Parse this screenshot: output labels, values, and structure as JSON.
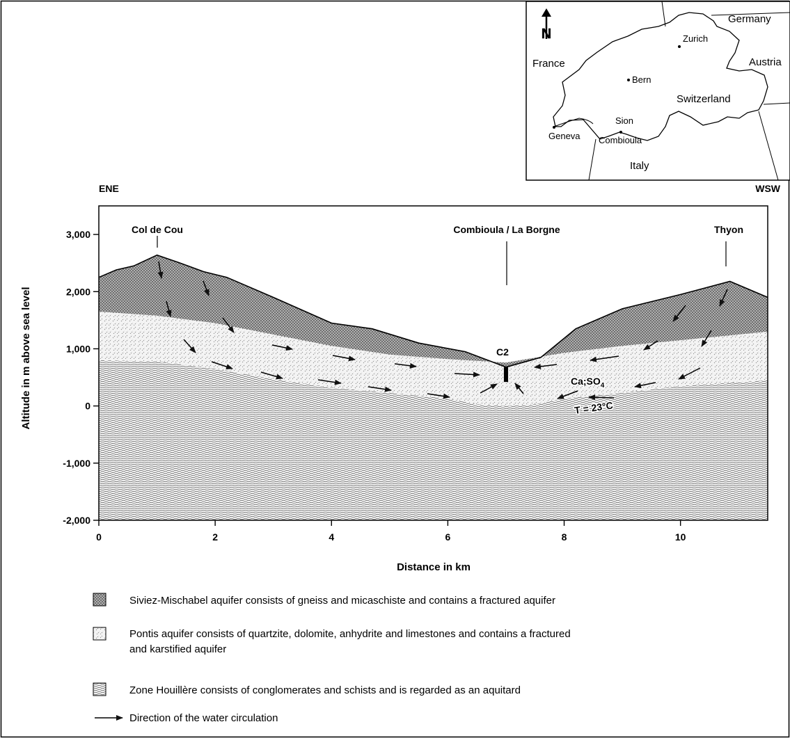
{
  "inset_map": {
    "north_label": "N",
    "countries": [
      "Germany",
      "Austria",
      "France",
      "Switzerland",
      "Italy"
    ],
    "cities": [
      "Zurich",
      "Bern",
      "Sion",
      "Geneva",
      "Combioula"
    ]
  },
  "section": {
    "left_direction": "ENE",
    "right_direction": "WSW",
    "locations": [
      "Col de Cou",
      "Combioula / La Borgne",
      "Thyon"
    ],
    "well_label": "C2",
    "chem_label": "Ca;SO",
    "chem_subscript": "4",
    "temperature_label": "T = 23°C"
  },
  "chart_data": {
    "type": "cross-section",
    "xlabel": "Distance in km",
    "ylabel": "Altitude in m above sea level",
    "xlim": [
      0,
      11.5
    ],
    "ylim": [
      -2000,
      3500
    ],
    "x_ticks": [
      "0",
      "2",
      "4",
      "6",
      "8",
      "10"
    ],
    "y_ticks": [
      "3,000",
      "2,000",
      "1,000",
      "0",
      "-1,000",
      "-2,000"
    ],
    "surface_profile_x": [
      0,
      0.3,
      0.6,
      1.0,
      1.4,
      1.8,
      2.2,
      3.0,
      4.0,
      4.7,
      5.5,
      6.3,
      7.0,
      7.6,
      8.2,
      9.0,
      10.0,
      10.85,
      11.5
    ],
    "surface_profile_y": [
      2250,
      2380,
      2450,
      2640,
      2500,
      2350,
      2250,
      1900,
      1450,
      1350,
      1100,
      950,
      680,
      850,
      1350,
      1700,
      1950,
      2180,
      1900
    ],
    "pontis_top_x": [
      0,
      1,
      2,
      3,
      4,
      5,
      6,
      7,
      8,
      9,
      10,
      11.5
    ],
    "pontis_top_y": [
      1650,
      1580,
      1450,
      1250,
      1050,
      900,
      820,
      760,
      930,
      1050,
      1150,
      1300
    ],
    "houillere_top_x": [
      0,
      1,
      2,
      3,
      4,
      5,
      6,
      6.5,
      7,
      7.5,
      8,
      9,
      10,
      11.5
    ],
    "houillere_top_y": [
      800,
      780,
      650,
      470,
      320,
      230,
      130,
      30,
      0,
      30,
      130,
      230,
      350,
      450
    ],
    "well_C2": {
      "x": 7.0,
      "top": 680,
      "bottom": 420
    },
    "legend": [
      {
        "key": "siviez",
        "text": "Siviez-Mischabel aquifer consists of gneiss and micaschiste and contains a fractured aquifer"
      },
      {
        "key": "pontis",
        "text": "Pontis aquifer consists of quartzite, dolomite, anhydrite and limestones and contains a fractured",
        "text2": "and karstified aquifer"
      },
      {
        "key": "houillere",
        "text": "Zone Houillère consists of conglomerates and schists and is regarded as an aquitard"
      },
      {
        "key": "arrow",
        "text": "Direction of the water circulation"
      }
    ]
  }
}
